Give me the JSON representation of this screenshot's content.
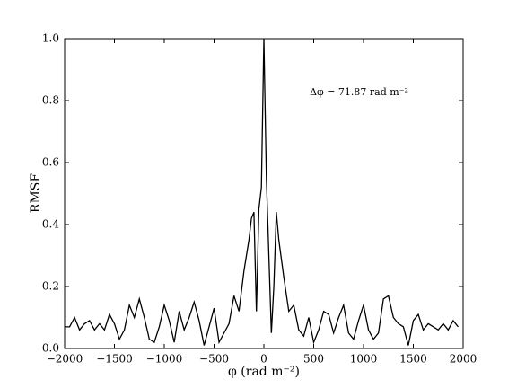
{
  "chart_data": {
    "type": "line",
    "ylabel": "RMSF",
    "xlabel": "φ (rad m⁻²)",
    "annotation": "Δφ = 71.87 rad m⁻²",
    "x": [
      -2000,
      -1950,
      -1900,
      -1850,
      -1800,
      -1750,
      -1700,
      -1650,
      -1600,
      -1550,
      -1500,
      -1450,
      -1400,
      -1350,
      -1300,
      -1250,
      -1200,
      -1150,
      -1100,
      -1050,
      -1000,
      -950,
      -900,
      -850,
      -800,
      -750,
      -700,
      -650,
      -600,
      -550,
      -500,
      -450,
      -400,
      -350,
      -300,
      -250,
      -200,
      -150,
      -125,
      -100,
      -75,
      -50,
      -25,
      0,
      25,
      50,
      75,
      100,
      125,
      150,
      200,
      250,
      300,
      350,
      400,
      450,
      500,
      550,
      600,
      650,
      700,
      750,
      800,
      850,
      900,
      950,
      1000,
      1050,
      1100,
      1150,
      1200,
      1250,
      1300,
      1350,
      1400,
      1450,
      1500,
      1550,
      1600,
      1650,
      1700,
      1750,
      1800,
      1850,
      1900,
      1950
    ],
    "series": [
      {
        "color": "#000000",
        "values": [
          0.07,
          0.07,
          0.1,
          0.06,
          0.08,
          0.09,
          0.06,
          0.08,
          0.06,
          0.11,
          0.08,
          0.03,
          0.06,
          0.14,
          0.1,
          0.16,
          0.1,
          0.03,
          0.02,
          0.07,
          0.14,
          0.09,
          0.02,
          0.12,
          0.06,
          0.1,
          0.15,
          0.09,
          0.01,
          0.07,
          0.13,
          0.02,
          0.05,
          0.08,
          0.17,
          0.12,
          0.25,
          0.35,
          0.42,
          0.44,
          0.12,
          0.45,
          0.52,
          1.0,
          0.55,
          0.3,
          0.05,
          0.2,
          0.44,
          0.35,
          0.23,
          0.12,
          0.14,
          0.06,
          0.04,
          0.1,
          0.02,
          0.06,
          0.12,
          0.11,
          0.05,
          0.1,
          0.14,
          0.05,
          0.03,
          0.09,
          0.14,
          0.06,
          0.03,
          0.05,
          0.16,
          0.17,
          0.1,
          0.08,
          0.07,
          0.01,
          0.09,
          0.11,
          0.06,
          0.08,
          0.07,
          0.06,
          0.08,
          0.06,
          0.09,
          0.07
        ]
      }
    ],
    "xlim": [
      -2000,
      2000
    ],
    "ylim": [
      0,
      1
    ],
    "xticks": [
      {
        "value": -2000,
        "label": "−2000"
      },
      {
        "value": -1500,
        "label": "−1500"
      },
      {
        "value": -1000,
        "label": "−1000"
      },
      {
        "value": -500,
        "label": "−500"
      },
      0,
      500,
      1000,
      1500,
      2000
    ],
    "yticks": [
      {
        "value": 0,
        "label": "0.0"
      },
      0.2,
      0.4,
      0.6,
      0.8,
      {
        "value": 1,
        "label": "1.0"
      }
    ]
  }
}
